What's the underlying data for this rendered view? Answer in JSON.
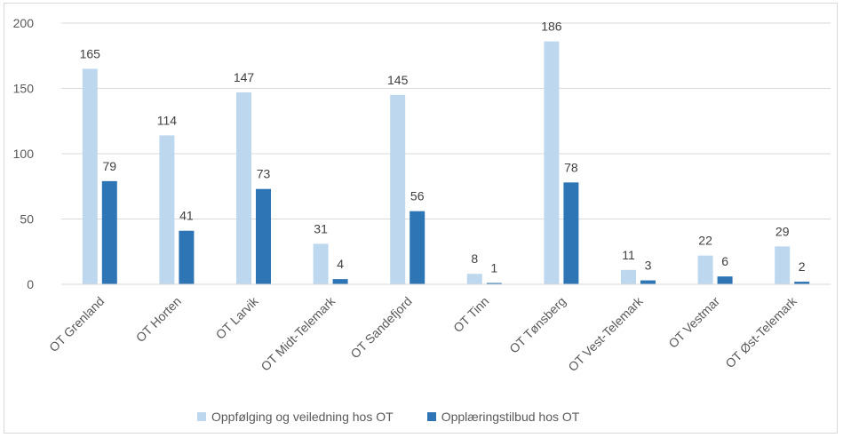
{
  "chart_data": {
    "type": "bar",
    "categories": [
      "OT Grenland",
      "OT Horten",
      "OT Larvik",
      "OT Midt-Telemark",
      "OT Sandefjord",
      "OT Tinn",
      "OT Tønsberg",
      "OT Vest-Telemark",
      "OT Vestmar",
      "OT Øst-Telemark"
    ],
    "series": [
      {
        "name": "Oppfølging og veiledning hos OT",
        "values": [
          165,
          114,
          147,
          31,
          145,
          8,
          186,
          11,
          22,
          29
        ],
        "color": "#bdd7ee"
      },
      {
        "name": "Opplæringstilbud hos OT",
        "values": [
          79,
          41,
          73,
          4,
          56,
          1,
          78,
          3,
          6,
          2
        ],
        "color": "#2e75b6"
      }
    ],
    "ylim": [
      0,
      200
    ],
    "yticks": [
      "0",
      "50",
      "100",
      "150",
      "200"
    ],
    "grid": true,
    "legend": "bottom",
    "title": "",
    "xlabel": "",
    "ylabel": ""
  }
}
